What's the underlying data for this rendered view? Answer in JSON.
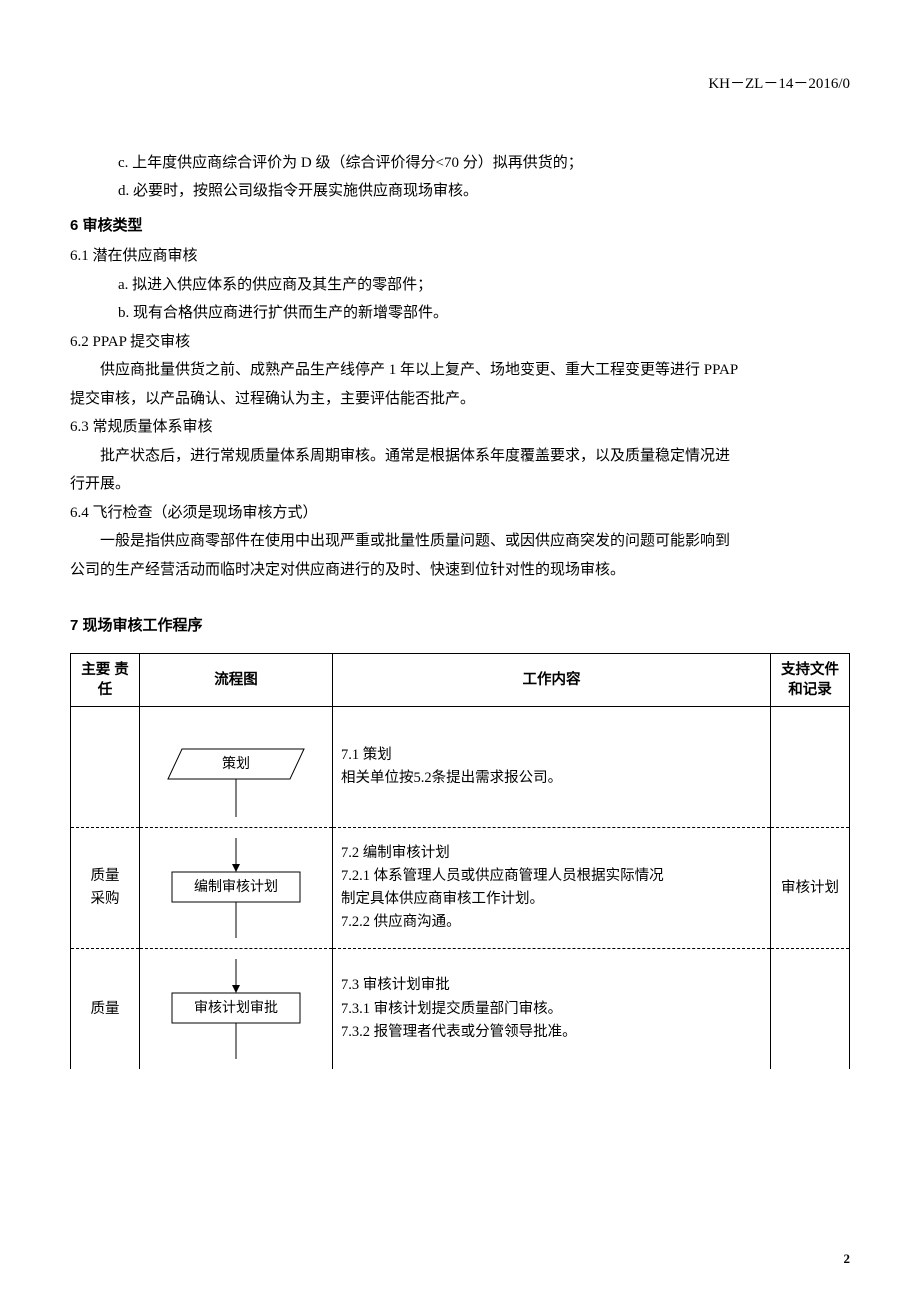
{
  "header": {
    "doc_code": "KH－ZL－14－2016/0"
  },
  "body": {
    "line_c": "c. 上年度供应商综合评价为 D 级（综合评价得分<70 分）拟再供货的；",
    "line_d": "d. 必要时，按照公司级指令开展实施供应商现场审核。",
    "sec6_title": "6  审核类型",
    "sec6_1": "6.1 潜在供应商审核",
    "sec6_1_a": "a. 拟进入供应体系的供应商及其生产的零部件；",
    "sec6_1_b": "b. 现有合格供应商进行扩供而生产的新增零部件。",
    "sec6_2": "6.2 PPAP 提交审核",
    "sec6_2_p1": "供应商批量供货之前、成熟产品生产线停产 1 年以上复产、场地变更、重大工程变更等进行 PPAP",
    "sec6_2_p2": "提交审核，以产品确认、过程确认为主，主要评估能否批产。",
    "sec6_3": "6.3 常规质量体系审核",
    "sec6_3_p1": "批产状态后，进行常规质量体系周期审核。通常是根据体系年度覆盖要求，以及质量稳定情况进",
    "sec6_3_p2": "行开展。",
    "sec6_4": "6.4 飞行检查（必须是现场审核方式）",
    "sec6_4_p1": "一般是指供应商零部件在使用中出现严重或批量性质量问题、或因供应商突发的问题可能影响到",
    "sec6_4_p2": "公司的生产经营活动而临时决定对供应商进行的及时、快速到位针对性的现场审核。",
    "sec7_title": "7  现场审核工作程序"
  },
  "table": {
    "headers": {
      "resp": "主要\n责任",
      "flow": "流程图",
      "work": "工作内容",
      "doc": "支持文件\n和记录"
    },
    "rows": [
      {
        "resp": "",
        "flow_label": "策划",
        "flow_shape": "parallelogram",
        "work": "7.1 策划\n      相关单位按5.2条提出需求报公司。",
        "doc": ""
      },
      {
        "resp": "质量\n采购",
        "flow_label": "编制审核计划",
        "flow_shape": "rect",
        "work": "7.2 编制审核计划\n7.2.1   体系管理人员或供应商管理人员根据实际情况\n制定具体供应商审核工作计划。\n7.2.2 供应商沟通。",
        "doc": "审核计划"
      },
      {
        "resp": "质量",
        "flow_label": "审核计划审批",
        "flow_shape": "rect",
        "work": "7.3 审核计划审批\n7.3.1 审核计划提交质量部门审核。\n7.3.2 报管理者代表或分管领导批准。",
        "doc": ""
      }
    ]
  },
  "page_number": "2"
}
